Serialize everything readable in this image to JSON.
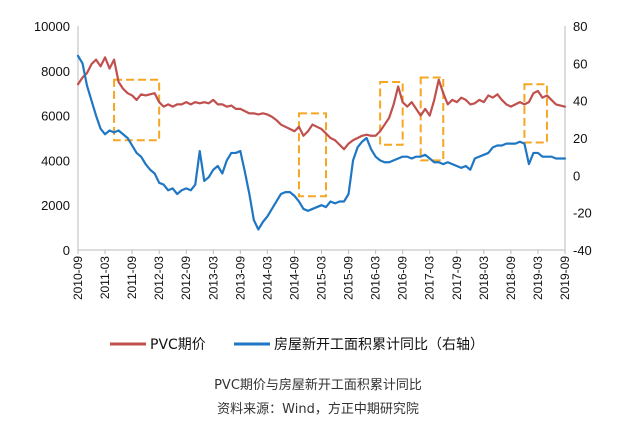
{
  "chart_data": {
    "type": "line",
    "title": "",
    "xlabel": "",
    "ylabel": "",
    "x_tick_labels": [
      "2010-09",
      "2011-03",
      "2011-09",
      "2012-03",
      "2012-09",
      "2013-03",
      "2013-09",
      "2014-03",
      "2014-09",
      "2015-03",
      "2015-09",
      "2016-03",
      "2016-09",
      "2017-03",
      "2017-09",
      "2018-03",
      "2018-09",
      "2019-03",
      "2019-09"
    ],
    "y_left": {
      "ylim": [
        0,
        10000
      ],
      "ticks": [
        "0",
        "2000",
        "4000",
        "6000",
        "8000",
        "10000"
      ]
    },
    "y_right": {
      "ylim": [
        -40,
        80
      ],
      "ticks": [
        "-40",
        "-20",
        "0",
        "20",
        "40",
        "60",
        "80"
      ]
    },
    "legend_position": "bottom",
    "series": [
      {
        "name": "PVC期价",
        "axis": "left",
        "color": "#c0504d",
        "points": [
          [
            "2010-09",
            7400
          ],
          [
            "2010-10",
            7700
          ],
          [
            "2010-11",
            7900
          ],
          [
            "2010-12",
            8300
          ],
          [
            "2011-01",
            8500
          ],
          [
            "2011-02",
            8200
          ],
          [
            "2011-03",
            8600
          ],
          [
            "2011-04",
            8100
          ],
          [
            "2011-05",
            8500
          ],
          [
            "2011-06",
            7500
          ],
          [
            "2011-07",
            7200
          ],
          [
            "2011-08",
            7000
          ],
          [
            "2011-09",
            6900
          ],
          [
            "2011-10",
            6700
          ],
          [
            "2011-11",
            6950
          ],
          [
            "2011-12",
            6900
          ],
          [
            "2012-01",
            6950
          ],
          [
            "2012-02",
            7000
          ],
          [
            "2012-03",
            6600
          ],
          [
            "2012-04",
            6400
          ],
          [
            "2012-05",
            6500
          ],
          [
            "2012-06",
            6400
          ],
          [
            "2012-07",
            6500
          ],
          [
            "2012-08",
            6500
          ],
          [
            "2012-09",
            6600
          ],
          [
            "2012-10",
            6500
          ],
          [
            "2012-11",
            6600
          ],
          [
            "2012-12",
            6550
          ],
          [
            "2013-01",
            6600
          ],
          [
            "2013-02",
            6550
          ],
          [
            "2013-03",
            6700
          ],
          [
            "2013-04",
            6500
          ],
          [
            "2013-05",
            6500
          ],
          [
            "2013-06",
            6400
          ],
          [
            "2013-07",
            6450
          ],
          [
            "2013-08",
            6300
          ],
          [
            "2013-09",
            6300
          ],
          [
            "2013-10",
            6200
          ],
          [
            "2013-11",
            6100
          ],
          [
            "2013-12",
            6100
          ],
          [
            "2014-01",
            6050
          ],
          [
            "2014-02",
            6100
          ],
          [
            "2014-03",
            6050
          ],
          [
            "2014-04",
            5950
          ],
          [
            "2014-05",
            5800
          ],
          [
            "2014-06",
            5600
          ],
          [
            "2014-07",
            5500
          ],
          [
            "2014-08",
            5400
          ],
          [
            "2014-09",
            5300
          ],
          [
            "2014-10",
            5500
          ],
          [
            "2014-11",
            5100
          ],
          [
            "2014-12",
            5300
          ],
          [
            "2015-01",
            5600
          ],
          [
            "2015-02",
            5500
          ],
          [
            "2015-03",
            5400
          ],
          [
            "2015-04",
            5200
          ],
          [
            "2015-05",
            5000
          ],
          [
            "2015-06",
            4900
          ],
          [
            "2015-07",
            4700
          ],
          [
            "2015-08",
            4500
          ],
          [
            "2015-09",
            4750
          ],
          [
            "2015-10",
            4900
          ],
          [
            "2015-11",
            5000
          ],
          [
            "2015-12",
            5100
          ],
          [
            "2016-01",
            5150
          ],
          [
            "2016-02",
            5100
          ],
          [
            "2016-03",
            5100
          ],
          [
            "2016-04",
            5300
          ],
          [
            "2016-05",
            5600
          ],
          [
            "2016-06",
            5900
          ],
          [
            "2016-07",
            6500
          ],
          [
            "2016-08",
            7300
          ],
          [
            "2016-09",
            6600
          ],
          [
            "2016-10",
            6400
          ],
          [
            "2016-11",
            6600
          ],
          [
            "2016-12",
            6300
          ],
          [
            "2017-01",
            6000
          ],
          [
            "2017-02",
            6300
          ],
          [
            "2017-03",
            6000
          ],
          [
            "2017-04",
            6700
          ],
          [
            "2017-05",
            7600
          ],
          [
            "2017-06",
            7000
          ],
          [
            "2017-07",
            6500
          ],
          [
            "2017-08",
            6700
          ],
          [
            "2017-09",
            6600
          ],
          [
            "2017-10",
            6800
          ],
          [
            "2017-11",
            6700
          ],
          [
            "2017-12",
            6500
          ],
          [
            "2018-01",
            6550
          ],
          [
            "2018-02",
            6700
          ],
          [
            "2018-03",
            6600
          ],
          [
            "2018-04",
            6900
          ],
          [
            "2018-05",
            6800
          ],
          [
            "2018-06",
            6950
          ],
          [
            "2018-07",
            6700
          ],
          [
            "2018-08",
            6500
          ],
          [
            "2018-09",
            6400
          ],
          [
            "2018-10",
            6500
          ],
          [
            "2018-11",
            6600
          ],
          [
            "2018-12",
            6500
          ],
          [
            "2019-01",
            6600
          ],
          [
            "2019-02",
            7000
          ],
          [
            "2019-03",
            7100
          ],
          [
            "2019-04",
            6800
          ],
          [
            "2019-05",
            6900
          ],
          [
            "2019-06",
            6700
          ],
          [
            "2019-07",
            6500
          ],
          [
            "2019-08",
            6450
          ],
          [
            "2019-09",
            6400
          ]
        ]
      },
      {
        "name": "房屋新开工面积累计同比（右轴）",
        "axis": "right",
        "color": "#1f77c4",
        "points": [
          [
            "2010-09",
            64
          ],
          [
            "2010-10",
            60
          ],
          [
            "2010-11",
            48
          ],
          [
            "2010-12",
            40
          ],
          [
            "2011-01",
            32
          ],
          [
            "2011-02",
            25
          ],
          [
            "2011-03",
            22
          ],
          [
            "2011-04",
            24
          ],
          [
            "2011-05",
            23
          ],
          [
            "2011-06",
            24
          ],
          [
            "2011-07",
            22
          ],
          [
            "2011-08",
            20
          ],
          [
            "2011-09",
            16
          ],
          [
            "2011-10",
            12
          ],
          [
            "2011-11",
            10
          ],
          [
            "2011-12",
            6
          ],
          [
            "2012-01",
            3
          ],
          [
            "2012-02",
            1
          ],
          [
            "2012-03",
            -4
          ],
          [
            "2012-04",
            -5
          ],
          [
            "2012-05",
            -8
          ],
          [
            "2012-06",
            -7
          ],
          [
            "2012-07",
            -10
          ],
          [
            "2012-08",
            -8
          ],
          [
            "2012-09",
            -7
          ],
          [
            "2012-10",
            -8
          ],
          [
            "2012-11",
            -5
          ],
          [
            "2012-12",
            13
          ],
          [
            "2013-01",
            -3
          ],
          [
            "2013-02",
            -1
          ],
          [
            "2013-03",
            3
          ],
          [
            "2013-04",
            5
          ],
          [
            "2013-05",
            1
          ],
          [
            "2013-06",
            8
          ],
          [
            "2013-07",
            12
          ],
          [
            "2013-08",
            12
          ],
          [
            "2013-09",
            13
          ],
          [
            "2013-10",
            2
          ],
          [
            "2013-11",
            -10
          ],
          [
            "2013-12",
            -24
          ],
          [
            "2014-01",
            -29
          ],
          [
            "2014-02",
            -25
          ],
          [
            "2014-03",
            -22
          ],
          [
            "2014-04",
            -18
          ],
          [
            "2014-05",
            -14
          ],
          [
            "2014-06",
            -10
          ],
          [
            "2014-07",
            -9
          ],
          [
            "2014-08",
            -9
          ],
          [
            "2014-09",
            -11
          ],
          [
            "2014-10",
            -14
          ],
          [
            "2014-11",
            -18
          ],
          [
            "2014-12",
            -19
          ],
          [
            "2015-01",
            -18
          ],
          [
            "2015-02",
            -17
          ],
          [
            "2015-03",
            -16
          ],
          [
            "2015-04",
            -17
          ],
          [
            "2015-05",
            -14
          ],
          [
            "2015-06",
            -15
          ],
          [
            "2015-07",
            -14
          ],
          [
            "2015-08",
            -14
          ],
          [
            "2015-09",
            -10
          ],
          [
            "2015-10",
            8
          ],
          [
            "2015-11",
            15
          ],
          [
            "2015-12",
            18
          ],
          [
            "2016-01",
            20
          ],
          [
            "2016-02",
            14
          ],
          [
            "2016-03",
            10
          ],
          [
            "2016-04",
            8
          ],
          [
            "2016-05",
            7
          ],
          [
            "2016-06",
            7
          ],
          [
            "2016-07",
            8
          ],
          [
            "2016-08",
            9
          ],
          [
            "2016-09",
            10
          ],
          [
            "2016-10",
            10
          ],
          [
            "2016-11",
            9
          ],
          [
            "2016-12",
            10
          ],
          [
            "2017-01",
            10
          ],
          [
            "2017-02",
            11
          ],
          [
            "2017-03",
            9
          ],
          [
            "2017-04",
            7
          ],
          [
            "2017-05",
            7
          ],
          [
            "2017-06",
            6
          ],
          [
            "2017-07",
            7
          ],
          [
            "2017-08",
            6
          ],
          [
            "2017-09",
            5
          ],
          [
            "2017-10",
            4
          ],
          [
            "2017-11",
            5
          ],
          [
            "2017-12",
            3
          ],
          [
            "2018-01",
            9
          ],
          [
            "2018-02",
            10
          ],
          [
            "2018-03",
            11
          ],
          [
            "2018-04",
            12
          ],
          [
            "2018-05",
            15
          ],
          [
            "2018-06",
            16
          ],
          [
            "2018-07",
            16
          ],
          [
            "2018-08",
            17
          ],
          [
            "2018-09",
            17
          ],
          [
            "2018-10",
            17
          ],
          [
            "2018-11",
            18
          ],
          [
            "2018-12",
            17
          ],
          [
            "2019-01",
            6
          ],
          [
            "2019-02",
            12
          ],
          [
            "2019-03",
            12
          ],
          [
            "2019-04",
            10
          ],
          [
            "2019-05",
            10
          ],
          [
            "2019-06",
            10
          ],
          [
            "2019-07",
            9
          ],
          [
            "2019-08",
            9
          ],
          [
            "2019-09",
            9
          ]
        ]
      }
    ],
    "highlight_boxes": [
      {
        "from": "2011-05",
        "to": "2012-03",
        "y_top": 7600,
        "y_bottom": 4900
      },
      {
        "from": "2014-10",
        "to": "2015-04",
        "y_top": 6100,
        "y_bottom": 2400
      },
      {
        "from": "2016-04",
        "to": "2016-09",
        "y_top": 7500,
        "y_bottom": 4700
      },
      {
        "from": "2017-01",
        "to": "2017-06",
        "y_top": 7700,
        "y_bottom": 4000
      },
      {
        "from": "2018-12",
        "to": "2019-05",
        "y_top": 7400,
        "y_bottom": 4800
      }
    ],
    "highlight_color": "#f5a623"
  },
  "caption": {
    "title": "PVC期价与房屋新开工面积累计同比",
    "source": "资料来源：Wind，方正中期研究院"
  }
}
